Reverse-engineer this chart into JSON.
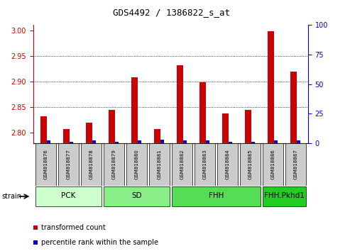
{
  "title": "GDS4492 / 1386822_s_at",
  "samples": [
    "GSM818876",
    "GSM818877",
    "GSM818878",
    "GSM818879",
    "GSM818880",
    "GSM818881",
    "GSM818882",
    "GSM818883",
    "GSM818884",
    "GSM818885",
    "GSM818886",
    "GSM818887"
  ],
  "red_values": [
    2.832,
    2.807,
    2.82,
    2.845,
    2.908,
    2.807,
    2.932,
    2.898,
    2.838,
    2.845,
    2.998,
    2.92
  ],
  "blue_pct": [
    2,
    1,
    2,
    1,
    2,
    3,
    2,
    2,
    1,
    1,
    2,
    2
  ],
  "ylim_left": [
    2.78,
    3.01
  ],
  "ylim_right": [
    0,
    100
  ],
  "yticks_left": [
    2.8,
    2.85,
    2.9,
    2.95,
    3.0
  ],
  "yticks_right": [
    0,
    25,
    50,
    75,
    100
  ],
  "groups": [
    {
      "label": "PCK",
      "start": 0,
      "end": 2,
      "color": "#ccffcc"
    },
    {
      "label": "SD",
      "start": 3,
      "end": 5,
      "color": "#88ee88"
    },
    {
      "label": "FHH",
      "start": 6,
      "end": 9,
      "color": "#55dd55"
    },
    {
      "label": "FHH.Pkhd1",
      "start": 10,
      "end": 11,
      "color": "#22cc22"
    }
  ],
  "red_color": "#cc0000",
  "blue_color": "#0000cc",
  "left_axis_color": "#cc0000",
  "right_axis_color": "#0000cc",
  "legend_red": "transformed count",
  "legend_blue": "percentile rank within the sample",
  "strain_label": "strain",
  "bg_color": "#ffffff",
  "sample_box_color": "#cccccc",
  "title_fontsize": 9,
  "axis_fontsize": 7,
  "sample_fontsize": 5,
  "group_fontsize": 7.5,
  "legend_fontsize": 7,
  "xlim": [
    -0.55,
    11.55
  ]
}
